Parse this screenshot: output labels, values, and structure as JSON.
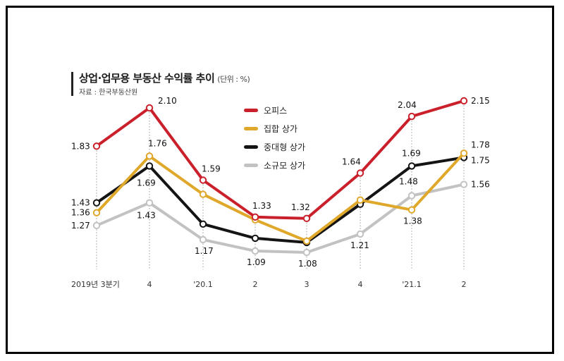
{
  "header": {
    "title": "상업·업무용 부동산 수익률 추이",
    "unit": "(단위 : %)",
    "source": "자료 : 한국부동산원"
  },
  "colors": {
    "office": "#c9202b",
    "collective": "#e0a82a",
    "medium": "#141414",
    "small": "#c2c2c2"
  },
  "chart_data": {
    "type": "line",
    "categories": [
      "2019년 3분기",
      "4",
      "'20.1",
      "2",
      "3",
      "4",
      "'21.1",
      "2"
    ],
    "series": [
      {
        "name": "오피스",
        "values": [
          1.83,
          2.1,
          1.59,
          1.33,
          1.32,
          1.64,
          2.04,
          2.15
        ],
        "labels": [
          "1.83",
          "2.10",
          "1.59",
          "1.33",
          "1.32",
          "1.64",
          "2.04",
          "2.15"
        ]
      },
      {
        "name": "집합 상가",
        "values": [
          1.36,
          1.76,
          1.49,
          1.31,
          1.16,
          1.45,
          1.38,
          1.78
        ],
        "labels": [
          "1.36",
          "1.76",
          "",
          "",
          "",
          "",
          "1.38",
          "1.78"
        ]
      },
      {
        "name": "중대형 상가",
        "values": [
          1.43,
          1.69,
          1.28,
          1.18,
          1.15,
          1.42,
          1.69,
          1.75
        ],
        "labels": [
          "1.43",
          "1.69",
          "",
          "",
          "",
          "",
          "1.69",
          "1.75"
        ]
      },
      {
        "name": "소규모 상가",
        "values": [
          1.27,
          1.43,
          1.17,
          1.09,
          1.08,
          1.21,
          1.48,
          1.56
        ],
        "labels": [
          "1.27",
          "1.43",
          "1.17",
          "1.09",
          "1.08",
          "1.21",
          "1.48",
          "1.56"
        ]
      }
    ],
    "legend_position": "top-center",
    "grid": false
  }
}
